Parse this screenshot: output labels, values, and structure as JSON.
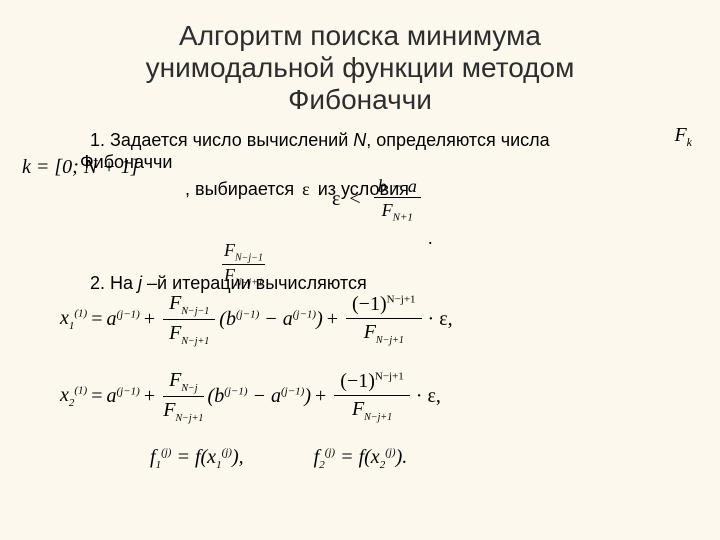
{
  "title_line1": "Алгоритм поиска минимума",
  "title_line2": "унимодальной функции  методом",
  "title_line3": "Фибоначчи",
  "p1_a": "1. Задается число вычислений ",
  "p1_N": "N",
  "p1_b": ", определяются числа",
  "p1_c": "Фибоначчи",
  "Fk": "F",
  "Fk_sub": "k",
  "kint": "k = [0; N + 1]",
  "choose_a": ", выбирается",
  "choose_b": "из условия",
  "eps_sym": "ε",
  "eps_num": "b − a",
  "eps_den_F": "F",
  "eps_den_sub": "N+1",
  "p2_a": "2. На ",
  "p2_j": "j",
  "p2_b": " –й итерации вычисляются",
  "ovl_top": "F",
  "ovl_top_sub": "N−j−1",
  "ovl_bot": "F",
  "ovl_bot_sub": "N−j+1",
  "row1": {
    "lhs_x": "x",
    "lhs_sub": "1",
    "lhs_sup": "(1)",
    "a": "a",
    "a_sup": "(j−1)",
    "fracTop": "F",
    "fracTopSub": "N−j−1",
    "fracBot": "F",
    "fracBotSub": "N−j+1",
    "b": "b",
    "b_sup": "(j−1)",
    "aa": "a",
    "aa_sup": "(j−1)",
    "neg1": "(−1)",
    "neg1_sup": "N−j+1",
    "den2": "F",
    "den2_sub": "N−j+1"
  },
  "row2": {
    "lhs_x": "x",
    "lhs_sub": "2",
    "lhs_sup": "(1)",
    "a": "a",
    "a_sup": "(j−1)",
    "fracTop": "F",
    "fracTopSub": "N−j",
    "fracBot": "F",
    "fracBotSub": "N−j+1",
    "b": "b",
    "b_sup": "(j−1)",
    "aa": "a",
    "aa_sup": "(j−1)",
    "neg1": "(−1)",
    "neg1_sup": "N−j+1",
    "den2": "F",
    "den2_sub": "N−j+1"
  },
  "last": {
    "f1": "f",
    "f1_sub": "1",
    "f1_sup": "(j)",
    "x1": "x",
    "x1_sub": "1",
    "x1_sup": "(j)",
    "f2": "f",
    "f2_sub": "2",
    "f2_sup": "(j)",
    "x2": "x",
    "x2_sub": "2",
    "x2_sup": "(j)"
  },
  "colors": {
    "bg": "#fcf8ee",
    "text": "#000000",
    "title": "#2d2d2d"
  }
}
